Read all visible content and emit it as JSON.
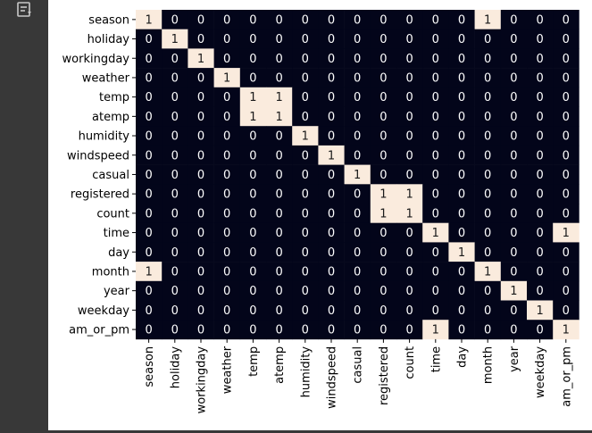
{
  "toolbar": {
    "output_icon": "output-toggle-icon"
  },
  "chart_data": {
    "type": "heatmap",
    "rows": [
      "season",
      "holiday",
      "workingday",
      "weather",
      "temp",
      "atemp",
      "humidity",
      "windspeed",
      "casual",
      "registered",
      "count",
      "time",
      "day",
      "month",
      "year",
      "weekday",
      "am_or_pm"
    ],
    "columns": [
      "season",
      "holiday",
      "workingday",
      "weather",
      "temp",
      "atemp",
      "humidity",
      "windspeed",
      "casual",
      "registered",
      "count",
      "time",
      "day",
      "month",
      "year",
      "weekday",
      "am_or_pm"
    ],
    "values": [
      [
        1,
        0,
        0,
        0,
        0,
        0,
        0,
        0,
        0,
        0,
        0,
        0,
        0,
        1,
        0,
        0,
        0
      ],
      [
        0,
        1,
        0,
        0,
        0,
        0,
        0,
        0,
        0,
        0,
        0,
        0,
        0,
        0,
        0,
        0,
        0
      ],
      [
        0,
        0,
        1,
        0,
        0,
        0,
        0,
        0,
        0,
        0,
        0,
        0,
        0,
        0,
        0,
        0,
        0
      ],
      [
        0,
        0,
        0,
        1,
        0,
        0,
        0,
        0,
        0,
        0,
        0,
        0,
        0,
        0,
        0,
        0,
        0
      ],
      [
        0,
        0,
        0,
        0,
        1,
        1,
        0,
        0,
        0,
        0,
        0,
        0,
        0,
        0,
        0,
        0,
        0
      ],
      [
        0,
        0,
        0,
        0,
        1,
        1,
        0,
        0,
        0,
        0,
        0,
        0,
        0,
        0,
        0,
        0,
        0
      ],
      [
        0,
        0,
        0,
        0,
        0,
        0,
        1,
        0,
        0,
        0,
        0,
        0,
        0,
        0,
        0,
        0,
        0
      ],
      [
        0,
        0,
        0,
        0,
        0,
        0,
        0,
        1,
        0,
        0,
        0,
        0,
        0,
        0,
        0,
        0,
        0
      ],
      [
        0,
        0,
        0,
        0,
        0,
        0,
        0,
        0,
        1,
        0,
        0,
        0,
        0,
        0,
        0,
        0,
        0
      ],
      [
        0,
        0,
        0,
        0,
        0,
        0,
        0,
        0,
        0,
        1,
        1,
        0,
        0,
        0,
        0,
        0,
        0
      ],
      [
        0,
        0,
        0,
        0,
        0,
        0,
        0,
        0,
        0,
        1,
        1,
        0,
        0,
        0,
        0,
        0,
        0
      ],
      [
        0,
        0,
        0,
        0,
        0,
        0,
        0,
        0,
        0,
        0,
        0,
        1,
        0,
        0,
        0,
        0,
        1
      ],
      [
        0,
        0,
        0,
        0,
        0,
        0,
        0,
        0,
        0,
        0,
        0,
        0,
        1,
        0,
        0,
        0,
        0
      ],
      [
        1,
        0,
        0,
        0,
        0,
        0,
        0,
        0,
        0,
        0,
        0,
        0,
        0,
        1,
        0,
        0,
        0
      ],
      [
        0,
        0,
        0,
        0,
        0,
        0,
        0,
        0,
        0,
        0,
        0,
        0,
        0,
        0,
        1,
        0,
        0
      ],
      [
        0,
        0,
        0,
        0,
        0,
        0,
        0,
        0,
        0,
        0,
        0,
        0,
        0,
        0,
        0,
        1,
        0
      ],
      [
        0,
        0,
        0,
        0,
        0,
        0,
        0,
        0,
        0,
        0,
        0,
        1,
        0,
        0,
        0,
        0,
        1
      ]
    ],
    "colors": {
      "zero": "#03051a",
      "one": "#faebdd",
      "text_on_zero": "#ffffff",
      "text_on_one": "#1a1a1a"
    },
    "annotated": true,
    "colorbar": false,
    "title": "",
    "xlabel": "",
    "ylabel": ""
  }
}
